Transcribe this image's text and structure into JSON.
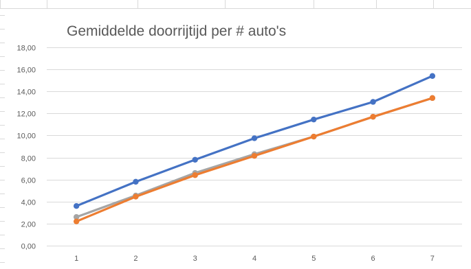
{
  "chart_data": {
    "type": "line",
    "title": "Gemiddelde doorrijtijd per # auto's",
    "xlabel": "",
    "ylabel": "",
    "categories": [
      "1",
      "2",
      "3",
      "4",
      "5",
      "6",
      "7"
    ],
    "ylim": [
      0,
      18
    ],
    "y_ticks": [
      "0,00",
      "2,00",
      "4,00",
      "6,00",
      "8,00",
      "10,00",
      "12,00",
      "14,00",
      "16,00",
      "18,00"
    ],
    "grid": true,
    "legend": "none",
    "series": [
      {
        "color": "#4472C4",
        "values": [
          3.6,
          5.8,
          7.8,
          9.75,
          11.45,
          13.05,
          15.4
        ]
      },
      {
        "color": "#A5A5A5",
        "values": [
          2.6,
          4.55,
          6.6,
          8.3,
          9.9,
          11.7,
          13.4
        ]
      },
      {
        "color": "#ED7D31",
        "values": [
          2.2,
          4.45,
          6.4,
          8.15,
          9.9,
          11.7,
          13.4
        ]
      }
    ]
  }
}
